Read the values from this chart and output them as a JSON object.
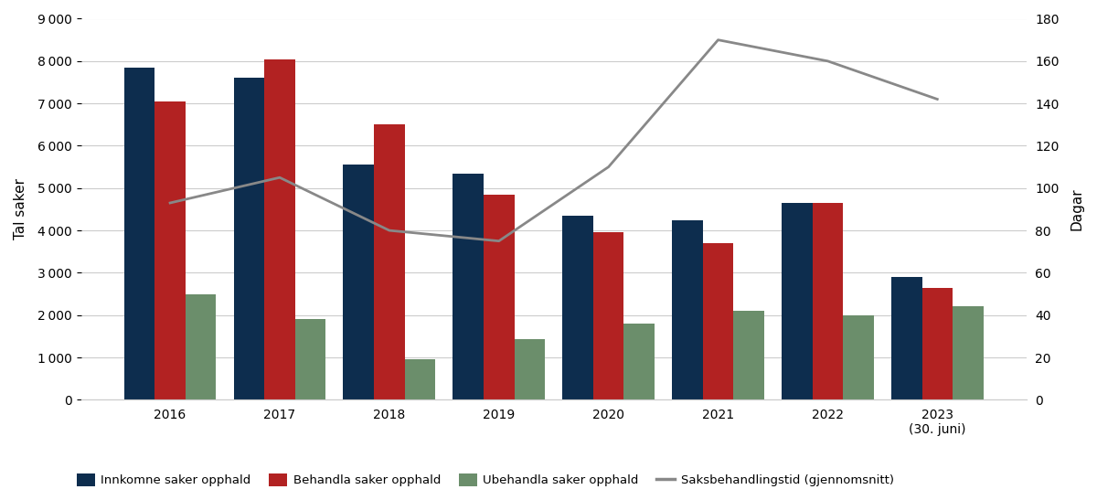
{
  "years": [
    "2016",
    "2017",
    "2018",
    "2019",
    "2020",
    "2021",
    "2022",
    "2023\n(30. juni)"
  ],
  "innkomne": [
    7850,
    7600,
    5550,
    5350,
    4350,
    4250,
    4650,
    2900
  ],
  "behandla": [
    7050,
    8050,
    6500,
    4850,
    3950,
    3700,
    4650,
    2650
  ],
  "ubehandla": [
    2500,
    1900,
    950,
    1430,
    1800,
    2100,
    2000,
    2200
  ],
  "saksbehandlingstid": [
    93,
    105,
    80,
    75,
    110,
    170,
    160,
    142
  ],
  "color_innkomne": "#0d2d4e",
  "color_behandla": "#b22222",
  "color_ubehandla": "#6b8e6b",
  "color_line": "#888888",
  "ylim_left": [
    0,
    9000
  ],
  "ylim_right": [
    0,
    180
  ],
  "yticks_left": [
    0,
    1000,
    2000,
    3000,
    4000,
    5000,
    6000,
    7000,
    8000,
    9000
  ],
  "yticks_right": [
    0,
    20,
    40,
    60,
    80,
    100,
    120,
    140,
    160,
    180
  ],
  "ylabel_left": "Tal saker",
  "ylabel_right": "Dagar",
  "legend_innkomne": "Innkomne saker opphald",
  "legend_behandla": "Behandla saker opphald",
  "legend_ubehandla": "Ubehandla saker opphald",
  "legend_line": "Saksbehandlingstid (gjennomsnitt)",
  "background_color": "#ffffff",
  "grid_color": "#cccccc",
  "bar_width": 0.28
}
